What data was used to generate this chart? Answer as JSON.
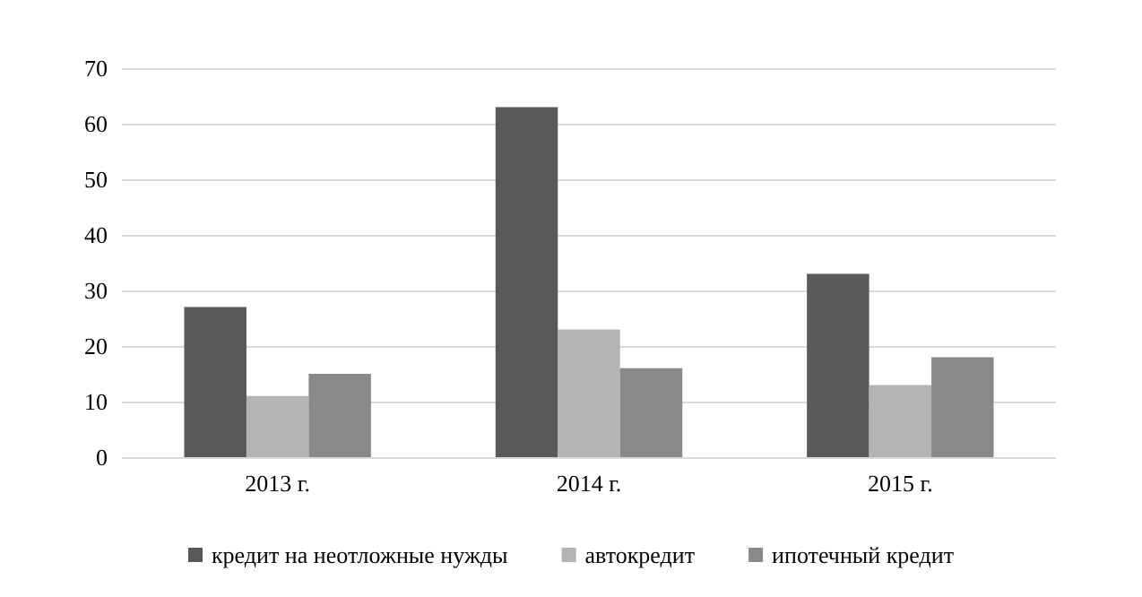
{
  "chart_data": {
    "type": "bar",
    "categories": [
      "2013 г.",
      "2014 г.",
      "2015 г."
    ],
    "series": [
      {
        "name": "кредит на неотложные нужды",
        "color": "#595959",
        "values": [
          27,
          63,
          33
        ]
      },
      {
        "name": "автокредит",
        "color": "#b3b3b3",
        "values": [
          11,
          23,
          13
        ]
      },
      {
        "name": "ипотечный кредит",
        "color": "#898989",
        "values": [
          15,
          16,
          18
        ]
      }
    ],
    "ylim": [
      0,
      70
    ],
    "yticks": [
      0,
      10,
      20,
      30,
      40,
      50,
      60,
      70
    ],
    "grid": "y",
    "legend": "bottom"
  }
}
